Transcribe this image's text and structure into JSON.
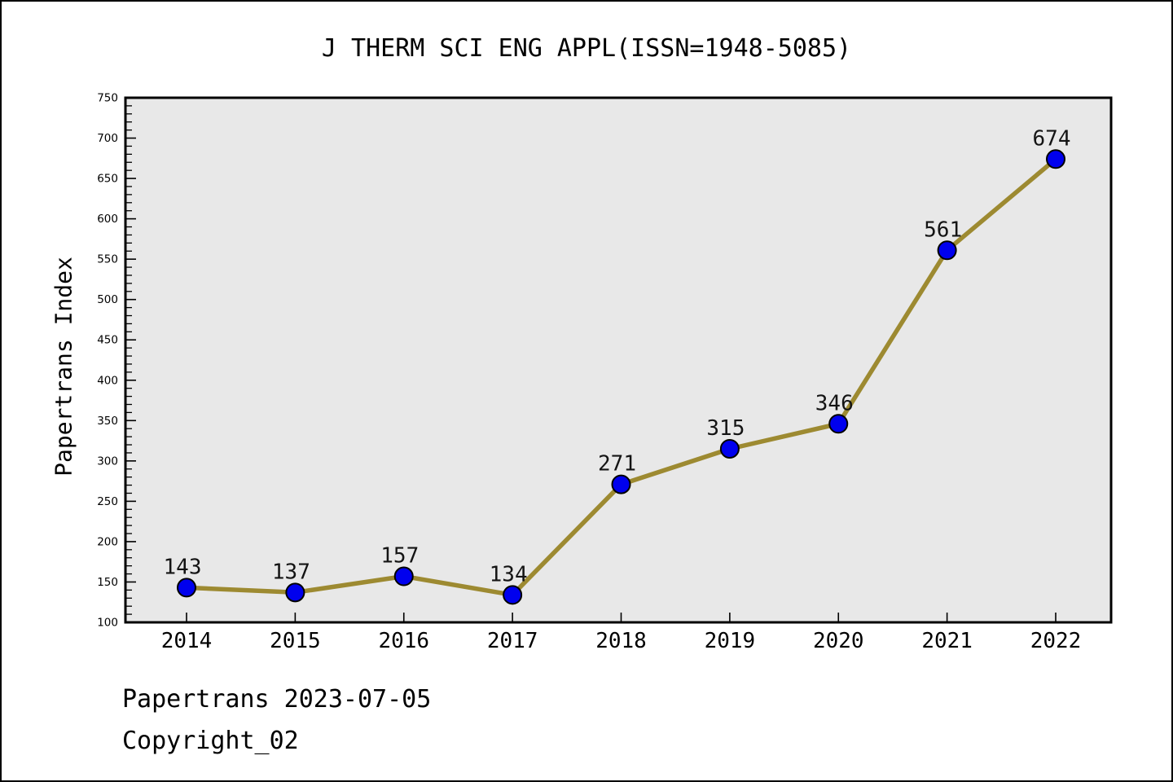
{
  "window": {
    "background": "#ffffff",
    "border_color": "#000000"
  },
  "title": "J THERM SCI ENG APPL(ISSN=1948-5085)",
  "footer": {
    "date_line": "Papertrans 2023-07-05",
    "copyright_line": "Copyright_02"
  },
  "chart_data": {
    "type": "line",
    "title": "J THERM SCI ENG APPL(ISSN=1948-5085)",
    "categories": [
      "2014",
      "2015",
      "2016",
      "2017",
      "2018",
      "2019",
      "2020",
      "2021",
      "2022"
    ],
    "series": [
      {
        "name": "Papertrans Index",
        "values": [
          143,
          137,
          157,
          134,
          271,
          315,
          346,
          561,
          674
        ]
      }
    ],
    "point_labels": [
      "143",
      "137",
      "157",
      "134",
      "271",
      "315",
      "346",
      "561",
      "674"
    ],
    "xlabel": "",
    "ylabel": "Papertrans Index",
    "ylim": [
      100,
      750
    ],
    "yticks": [
      100,
      150,
      200,
      250,
      300,
      350,
      400,
      450,
      500,
      550,
      600,
      650,
      700,
      750
    ],
    "ytick_minor_step": 10,
    "grid": false,
    "legend": "none",
    "marker": "circle",
    "colors": {
      "line": "#9d8a31",
      "marker_fill": "#0000ee",
      "marker_edge": "#000000",
      "plot_background": "#e8e8e8",
      "frame": "#000000",
      "text": "#000000"
    }
  }
}
